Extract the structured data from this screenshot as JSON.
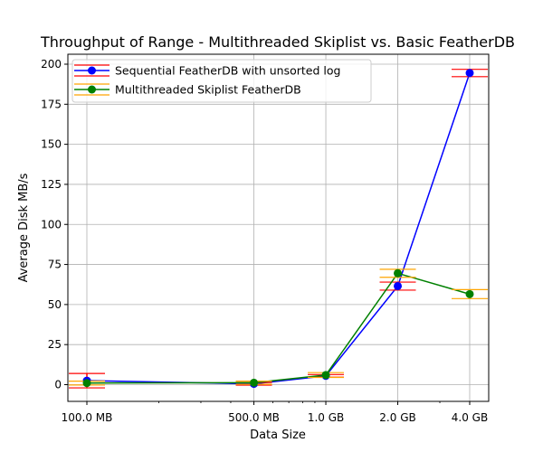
{
  "chart_data": {
    "type": "line",
    "title": "Throughput of Range - Multithreaded Skiplist vs. Basic FeatherDB",
    "xlabel": "Data Size",
    "ylabel": "Average Disk MB/s",
    "x_scale": "log",
    "x_values_mb": [
      100,
      500,
      1000,
      2000,
      4000
    ],
    "x_tick_labels": [
      "100.0 MB",
      "500.0 MB",
      "1.0 GB",
      "2.0 GB",
      "4.0 GB"
    ],
    "y_ticks": [
      0,
      25,
      50,
      75,
      100,
      125,
      150,
      175,
      200
    ],
    "ylim": [
      -11,
      207
    ],
    "grid": true,
    "legend_position": "upper-left",
    "series": [
      {
        "name": "Sequential FeatherDB with unsorted log",
        "color": "#0000ff",
        "error_color": "#ff0000",
        "marker": "circle",
        "values": [
          2.5,
          0.5,
          5.5,
          61.5,
          194.5
        ],
        "errors": [
          4.5,
          0.8,
          0.8,
          2.5,
          2.3
        ]
      },
      {
        "name": "Multithreaded Skiplist FeatherDB",
        "color": "#008000",
        "error_color": "#ffa500",
        "marker": "circle",
        "values": [
          1.0,
          1.2,
          6.0,
          69.5,
          56.5
        ],
        "errors": [
          1.2,
          1.0,
          1.5,
          2.5,
          2.8
        ]
      }
    ]
  }
}
